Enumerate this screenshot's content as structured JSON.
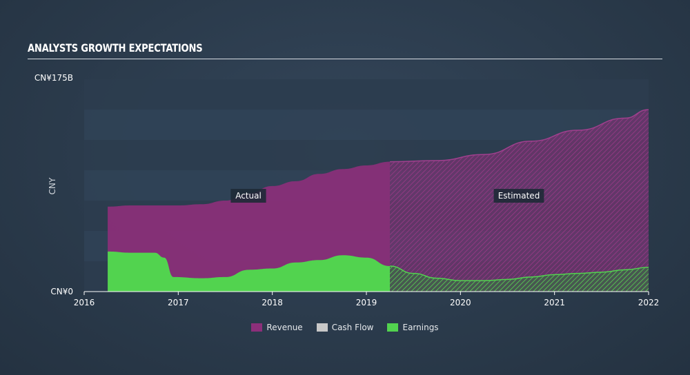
{
  "page": {
    "title": "ANALYSTS GROWTH EXPECTATIONS"
  },
  "chart_data": {
    "type": "area",
    "title": "ANALYSTS GROWTH EXPECTATIONS",
    "ylabel": "CNY",
    "ylim": [
      0,
      175
    ],
    "y_ticks": [
      "CN¥175B",
      "CN¥0"
    ],
    "x_ticks": [
      "2016",
      "2017",
      "2018",
      "2019",
      "2020",
      "2021",
      "2022"
    ],
    "xlim": [
      2016,
      2022
    ],
    "split_x": 2019.25,
    "annotations": {
      "actual": "Actual",
      "estimated": "Estimated"
    },
    "colors": {
      "Revenue": "#8c2f7a",
      "Cash Flow": "#c8c8c8",
      "Earnings": "#52d34f"
    },
    "series": [
      {
        "name": "Revenue",
        "x": [
          2016.25,
          2016.5,
          2016.75,
          2017.0,
          2017.25,
          2017.5,
          2017.75,
          2018.0,
          2018.25,
          2018.5,
          2018.75,
          2019.0,
          2019.25,
          2019.75,
          2020.25,
          2020.75,
          2021.25,
          2021.75,
          2022.0
        ],
        "values": [
          70,
          71,
          71,
          71,
          72,
          75,
          81,
          87,
          91,
          97,
          101,
          104,
          107,
          108,
          113,
          124,
          133,
          143,
          150
        ]
      },
      {
        "name": "Cash Flow",
        "x": [],
        "values": []
      },
      {
        "name": "Earnings",
        "x": [
          2016.25,
          2016.5,
          2016.75,
          2016.85,
          2016.95,
          2017.25,
          2017.5,
          2017.75,
          2018.0,
          2018.25,
          2018.5,
          2018.75,
          2019.0,
          2019.25,
          2019.5,
          2019.75,
          2020.0,
          2020.25,
          2020.5,
          2020.75,
          2021.0,
          2021.25,
          2021.5,
          2021.75,
          2022.0
        ],
        "values": [
          33,
          32,
          32,
          28,
          12,
          11,
          12,
          18,
          19,
          24,
          26,
          30,
          28,
          21,
          15,
          11,
          9,
          9,
          10,
          12,
          14,
          15,
          16,
          18,
          20
        ]
      }
    ],
    "legend": [
      "Revenue",
      "Cash Flow",
      "Earnings"
    ],
    "legend_position": "bottom-center"
  }
}
